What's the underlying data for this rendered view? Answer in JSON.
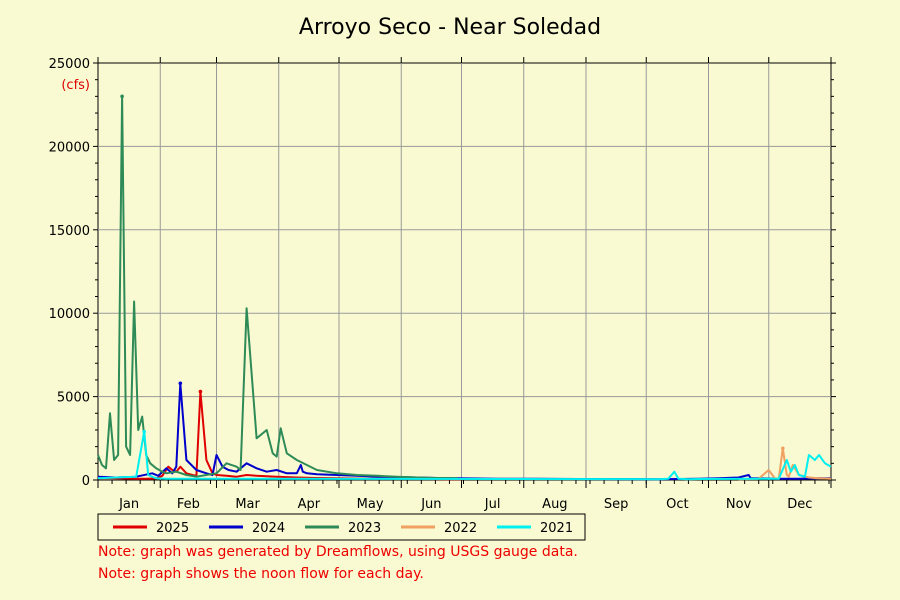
{
  "chart_data": {
    "type": "line",
    "title": "Arroyo Seco - Near Soledad",
    "unit": "(cfs)",
    "xlabel": "",
    "ylabel": "",
    "ylim": [
      0,
      25000
    ],
    "yticks": [
      0,
      5000,
      10000,
      15000,
      20000,
      25000
    ],
    "months": [
      "Jan",
      "Feb",
      "Mar",
      "Apr",
      "May",
      "Jun",
      "Jul",
      "Aug",
      "Sep",
      "Oct",
      "Nov",
      "Dec"
    ],
    "xlim": [
      1,
      366
    ],
    "grid": true,
    "legend_position": "bottom",
    "series": [
      {
        "name": "2025",
        "color": "#e00000",
        "x": [
          1,
          5,
          10,
          15,
          20,
          25,
          30,
          33,
          36,
          38,
          40,
          42,
          45,
          48,
          50,
          52,
          55,
          58,
          60,
          65,
          70,
          75,
          80,
          90,
          100,
          110,
          120,
          135,
          150,
          165,
          175,
          182
        ],
        "y": [
          100,
          120,
          100,
          90,
          80,
          80,
          90,
          250,
          800,
          600,
          500,
          800,
          400,
          300,
          250,
          5300,
          1200,
          400,
          300,
          250,
          200,
          300,
          250,
          200,
          150,
          120,
          100,
          80,
          70,
          60,
          50,
          50
        ]
      },
      {
        "name": "2024",
        "color": "#0000cc",
        "x": [
          1,
          10,
          20,
          28,
          31,
          35,
          38,
          40,
          42,
          45,
          50,
          55,
          58,
          60,
          63,
          66,
          70,
          75,
          80,
          85,
          90,
          95,
          100,
          102,
          103,
          105,
          110,
          120,
          130,
          140,
          150,
          160,
          170,
          180,
          190,
          200,
          220,
          240,
          260,
          280,
          300,
          310,
          320,
          325,
          326,
          330,
          340,
          350,
          360,
          366
        ],
        "y": [
          200,
          150,
          200,
          400,
          250,
          700,
          400,
          800,
          5800,
          1200,
          600,
          400,
          300,
          1500,
          800,
          600,
          500,
          1000,
          700,
          500,
          600,
          400,
          400,
          900,
          500,
          400,
          350,
          300,
          250,
          200,
          180,
          150,
          120,
          100,
          90,
          80,
          70,
          60,
          55,
          50,
          80,
          100,
          150,
          300,
          100,
          100,
          80,
          80,
          100,
          100
        ],
        "peaks": [
          {
            "x": 42,
            "y": 5800
          }
        ]
      },
      {
        "name": "2023",
        "color": "#2e8b57",
        "x": [
          1,
          3,
          5,
          7,
          9,
          11,
          13,
          15,
          17,
          19,
          21,
          23,
          25,
          27,
          30,
          33,
          35,
          40,
          45,
          50,
          55,
          60,
          65,
          70,
          72,
          75,
          80,
          85,
          88,
          90,
          92,
          95,
          100,
          110,
          120,
          130,
          140,
          150,
          160,
          170,
          180
        ],
        "y": [
          1500,
          900,
          700,
          4000,
          1200,
          1500,
          23000,
          2000,
          1500,
          10700,
          3000,
          3800,
          1500,
          1000,
          700,
          500,
          400,
          500,
          300,
          200,
          300,
          400,
          1000,
          800,
          600,
          10300,
          2500,
          3000,
          1600,
          1400,
          3100,
          1600,
          1200,
          600,
          400,
          300,
          250,
          200,
          150,
          120,
          100
        ]
      },
      {
        "name": "2022",
        "color": "#f0a060",
        "x": [
          320,
          330,
          335,
          338,
          340,
          342,
          344,
          345,
          347,
          350,
          355,
          360,
          366
        ],
        "y": [
          50,
          80,
          600,
          100,
          80,
          1900,
          300,
          200,
          900,
          300,
          150,
          100,
          80
        ]
      },
      {
        "name": "2021",
        "color": "#00f0f0",
        "x": [
          1,
          10,
          20,
          24,
          26,
          28,
          30,
          35,
          280,
          285,
          288,
          290,
          295,
          300,
          340,
          344,
          346,
          348,
          350,
          353,
          355,
          358,
          360,
          363,
          366
        ],
        "y": [
          100,
          150,
          200,
          2900,
          300,
          200,
          100,
          80,
          50,
          80,
          500,
          80,
          50,
          60,
          80,
          1200,
          500,
          900,
          300,
          200,
          1500,
          1200,
          1500,
          1000,
          800
        ]
      }
    ]
  },
  "notes": [
    "Note: graph was generated by Dreamflows, using USGS gauge data.",
    "Note: graph shows the noon flow for each day."
  ]
}
